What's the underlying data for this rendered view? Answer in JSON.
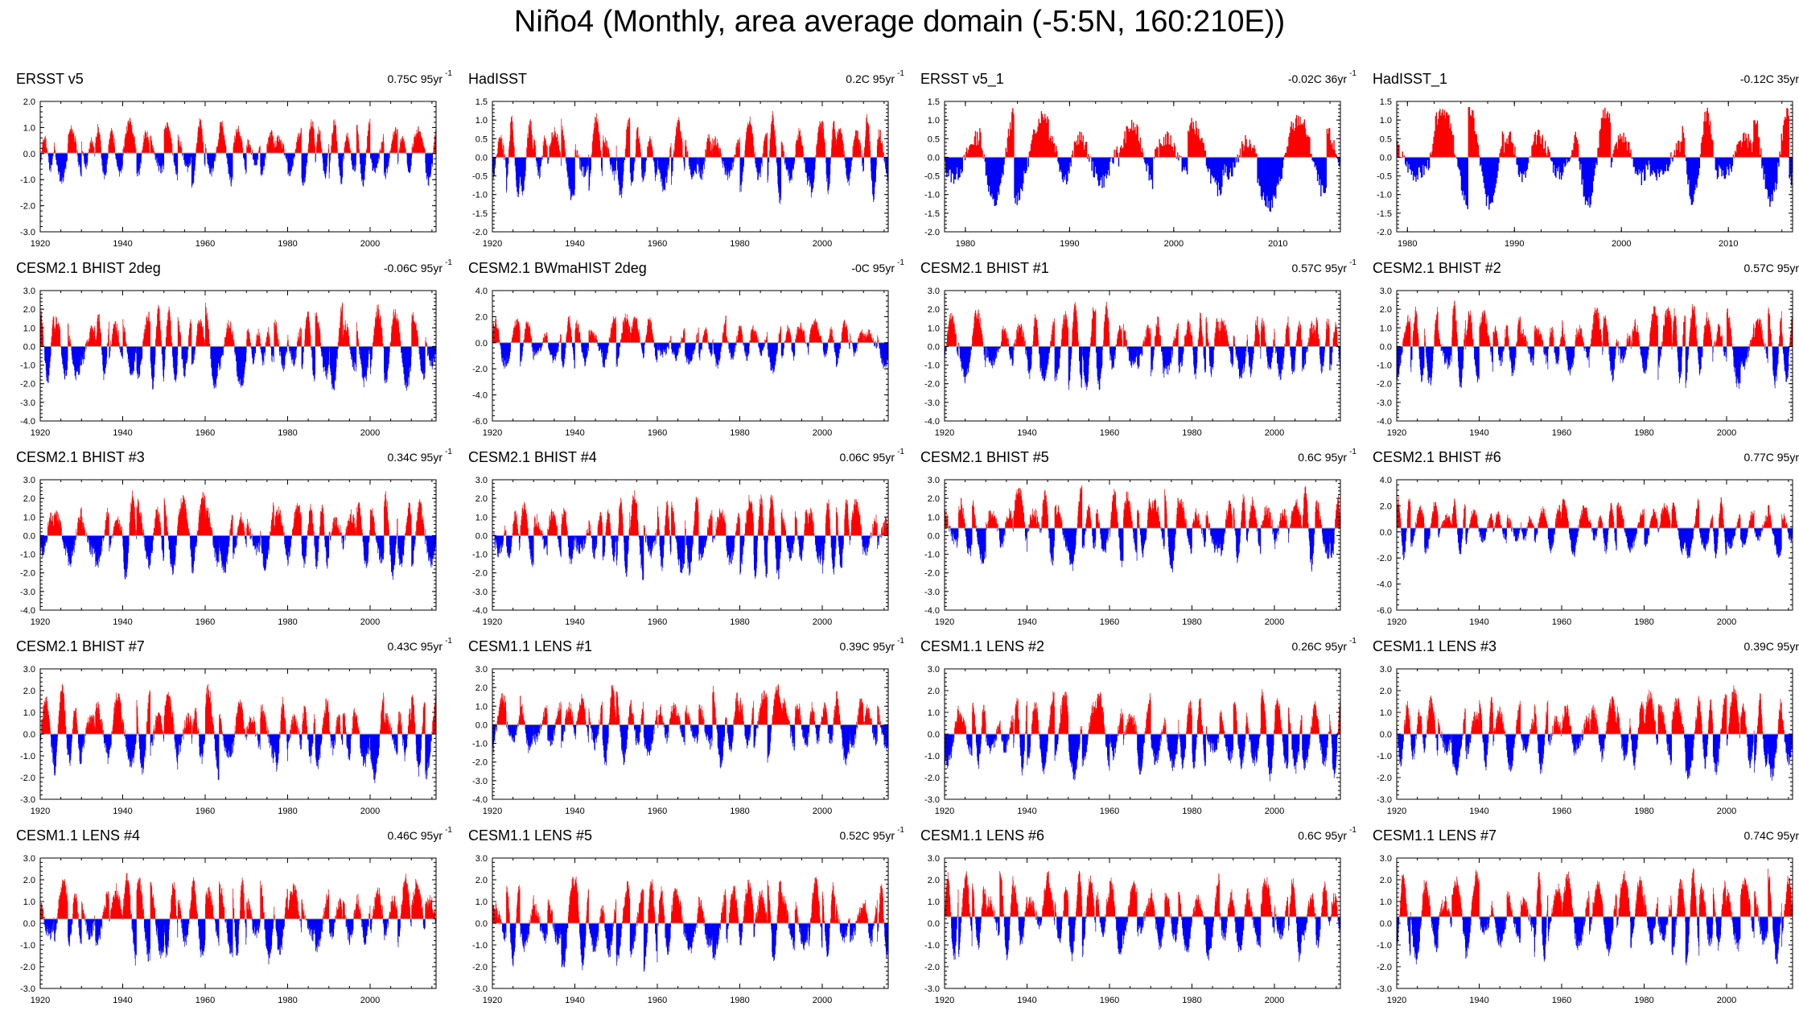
{
  "title": "Niño4 (Monthly, area average domain (-5:5N, 160:210E))",
  "colors": {
    "positive": "#ff0000",
    "negative": "#0000ff",
    "axis": "#000000",
    "zero": "#999999"
  },
  "chart_data": [
    {
      "type": "bar",
      "title": "ERSST v5",
      "trend": "0.75C 95yr",
      "xlim": [
        1920,
        2016
      ],
      "xticks": [
        1920,
        1940,
        1960,
        1980,
        2000
      ],
      "ylim": [
        -3.0,
        2.0
      ],
      "yticks": [
        -3.0,
        -2.0,
        -1.0,
        0.0,
        1.0,
        2.0
      ],
      "reference": 0.02,
      "amp": 1.1,
      "seed": 11
    },
    {
      "type": "bar",
      "title": "HadISST",
      "trend": "0.2C 95yr",
      "xlim": [
        1920,
        2016
      ],
      "xticks": [
        1920,
        1940,
        1960,
        1980,
        2000
      ],
      "ylim": [
        -2.0,
        1.5
      ],
      "yticks": [
        -2.0,
        -1.5,
        -1.0,
        -0.5,
        0.0,
        0.5,
        1.0,
        1.5
      ],
      "reference": 0.0,
      "amp": 1.0,
      "seed": 12
    },
    {
      "type": "bar",
      "title": "ERSST v5_1",
      "trend": "-0.02C 36yr",
      "xlim": [
        1978,
        2016
      ],
      "xticks": [
        1980,
        1990,
        2000,
        2010
      ],
      "ylim": [
        -2.0,
        1.5
      ],
      "yticks": [
        -2.0,
        -1.5,
        -1.0,
        -0.5,
        0.0,
        0.5,
        1.0,
        1.5
      ],
      "reference": 0.0,
      "amp": 1.2,
      "seed": 13
    },
    {
      "type": "bar",
      "title": "HadISST_1",
      "trend": "-0.12C 35yr",
      "xlim": [
        1979,
        2016
      ],
      "xticks": [
        1980,
        1990,
        2000,
        2010
      ],
      "ylim": [
        -2.0,
        1.5
      ],
      "yticks": [
        -2.0,
        -1.5,
        -1.0,
        -0.5,
        0.0,
        0.5,
        1.0,
        1.5
      ],
      "reference": 0.0,
      "amp": 1.2,
      "seed": 14
    },
    {
      "type": "bar",
      "title": "CESM2.1 BHIST 2deg",
      "trend": "-0.06C 95yr",
      "xlim": [
        1920,
        2016
      ],
      "xticks": [
        1920,
        1940,
        1960,
        1980,
        2000
      ],
      "ylim": [
        -4.0,
        3.0
      ],
      "yticks": [
        -4.0,
        -3.0,
        -2.0,
        -1.0,
        0.0,
        1.0,
        2.0,
        3.0
      ],
      "reference": 0.0,
      "amp": 2.0,
      "seed": 21
    },
    {
      "type": "bar",
      "title": "CESM2.1 BWmaHIST 2deg",
      "trend": "-0C 95yr",
      "xlim": [
        1920,
        2016
      ],
      "xticks": [
        1920,
        1940,
        1960,
        1980,
        2000
      ],
      "ylim": [
        -6.0,
        4.0
      ],
      "yticks": [
        -6.0,
        -4.0,
        -2.0,
        0.0,
        2.0,
        4.0
      ],
      "reference": 0.0,
      "amp": 2.0,
      "seed": 22
    },
    {
      "type": "bar",
      "title": "CESM2.1 BHIST #1",
      "trend": "0.57C 95yr",
      "xlim": [
        1920,
        2016
      ],
      "xticks": [
        1920,
        1940,
        1960,
        1980,
        2000
      ],
      "ylim": [
        -4.0,
        3.0
      ],
      "yticks": [
        -4.0,
        -3.0,
        -2.0,
        -1.0,
        0.0,
        1.0,
        2.0,
        3.0
      ],
      "reference": 0.0,
      "amp": 2.0,
      "seed": 23
    },
    {
      "type": "bar",
      "title": "CESM2.1 BHIST #2",
      "trend": "0.57C 95yr",
      "xlim": [
        1920,
        2016
      ],
      "xticks": [
        1920,
        1940,
        1960,
        1980,
        2000
      ],
      "ylim": [
        -4.0,
        3.0
      ],
      "yticks": [
        -4.0,
        -3.0,
        -2.0,
        -1.0,
        0.0,
        1.0,
        2.0,
        3.0
      ],
      "reference": 0.0,
      "amp": 2.0,
      "seed": 24
    },
    {
      "type": "bar",
      "title": "CESM2.1 BHIST #3",
      "trend": "0.34C 95yr",
      "xlim": [
        1920,
        2016
      ],
      "xticks": [
        1920,
        1940,
        1960,
        1980,
        2000
      ],
      "ylim": [
        -4.0,
        3.0
      ],
      "yticks": [
        -4.0,
        -3.0,
        -2.0,
        -1.0,
        0.0,
        1.0,
        2.0,
        3.0
      ],
      "reference": 0.0,
      "amp": 2.0,
      "seed": 31
    },
    {
      "type": "bar",
      "title": "CESM2.1 BHIST #4",
      "trend": "0.06C 95yr",
      "xlim": [
        1920,
        2016
      ],
      "xticks": [
        1920,
        1940,
        1960,
        1980,
        2000
      ],
      "ylim": [
        -4.0,
        3.0
      ],
      "yticks": [
        -4.0,
        -3.0,
        -2.0,
        -1.0,
        0.0,
        1.0,
        2.0,
        3.0
      ],
      "reference": 0.0,
      "amp": 2.0,
      "seed": 32
    },
    {
      "type": "bar",
      "title": "CESM2.1 BHIST #5",
      "trend": "0.6C 95yr",
      "xlim": [
        1920,
        2016
      ],
      "xticks": [
        1920,
        1940,
        1960,
        1980,
        2000
      ],
      "ylim": [
        -4.0,
        3.0
      ],
      "yticks": [
        -4.0,
        -3.0,
        -2.0,
        -1.0,
        0.0,
        1.0,
        2.0,
        3.0
      ],
      "reference": 0.4,
      "amp": 2.0,
      "seed": 33
    },
    {
      "type": "bar",
      "title": "CESM2.1 BHIST #6",
      "trend": "0.77C 95yr",
      "xlim": [
        1920,
        2016
      ],
      "xticks": [
        1920,
        1940,
        1960,
        1980,
        2000
      ],
      "ylim": [
        -6.0,
        4.0
      ],
      "yticks": [
        -6.0,
        -4.0,
        -2.0,
        0.0,
        2.0,
        4.0
      ],
      "reference": 0.3,
      "amp": 2.0,
      "seed": 34
    },
    {
      "type": "bar",
      "title": "CESM2.1 BHIST #7",
      "trend": "0.43C 95yr",
      "xlim": [
        1920,
        2016
      ],
      "xticks": [
        1920,
        1940,
        1960,
        1980,
        2000
      ],
      "ylim": [
        -3.0,
        3.0
      ],
      "yticks": [
        -3.0,
        -2.0,
        -1.0,
        0.0,
        1.0,
        2.0,
        3.0
      ],
      "reference": 0.0,
      "amp": 1.9,
      "seed": 41
    },
    {
      "type": "bar",
      "title": "CESM1.1 LENS #1",
      "trend": "0.39C 95yr",
      "xlim": [
        1920,
        2016
      ],
      "xticks": [
        1920,
        1940,
        1960,
        1980,
        2000
      ],
      "ylim": [
        -4.0,
        3.0
      ],
      "yticks": [
        -4.0,
        -3.0,
        -2.0,
        -1.0,
        0.0,
        1.0,
        2.0,
        3.0
      ],
      "reference": 0.0,
      "amp": 1.9,
      "seed": 42
    },
    {
      "type": "bar",
      "title": "CESM1.1 LENS #2",
      "trend": "0.26C 95yr",
      "xlim": [
        1920,
        2016
      ],
      "xticks": [
        1920,
        1940,
        1960,
        1980,
        2000
      ],
      "ylim": [
        -3.0,
        3.0
      ],
      "yticks": [
        -3.0,
        -2.0,
        -1.0,
        0.0,
        1.0,
        2.0,
        3.0
      ],
      "reference": 0.0,
      "amp": 1.8,
      "seed": 43
    },
    {
      "type": "bar",
      "title": "CESM1.1 LENS #3",
      "trend": "0.39C 95yr",
      "xlim": [
        1920,
        2016
      ],
      "xticks": [
        1920,
        1940,
        1960,
        1980,
        2000
      ],
      "ylim": [
        -3.0,
        3.0
      ],
      "yticks": [
        -3.0,
        -2.0,
        -1.0,
        0.0,
        1.0,
        2.0,
        3.0
      ],
      "reference": 0.0,
      "amp": 1.8,
      "seed": 44
    },
    {
      "type": "bar",
      "title": "CESM1.1 LENS #4",
      "trend": "0.46C 95yr",
      "xlim": [
        1920,
        2016
      ],
      "xticks": [
        1920,
        1940,
        1960,
        1980,
        2000
      ],
      "ylim": [
        -3.0,
        3.0
      ],
      "yticks": [
        -3.0,
        -2.0,
        -1.0,
        0.0,
        1.0,
        2.0,
        3.0
      ],
      "reference": 0.2,
      "amp": 1.8,
      "seed": 51
    },
    {
      "type": "bar",
      "title": "CESM1.1 LENS #5",
      "trend": "0.52C 95yr",
      "xlim": [
        1920,
        2016
      ],
      "xticks": [
        1920,
        1940,
        1960,
        1980,
        2000
      ],
      "ylim": [
        -3.0,
        3.0
      ],
      "yticks": [
        -3.0,
        -2.0,
        -1.0,
        0.0,
        1.0,
        2.0,
        3.0
      ],
      "reference": 0.0,
      "amp": 1.8,
      "seed": 52
    },
    {
      "type": "bar",
      "title": "CESM1.1 LENS #6",
      "trend": "0.6C 95yr",
      "xlim": [
        1920,
        2016
      ],
      "xticks": [
        1920,
        1940,
        1960,
        1980,
        2000
      ],
      "ylim": [
        -3.0,
        3.0
      ],
      "yticks": [
        -3.0,
        -2.0,
        -1.0,
        0.0,
        1.0,
        2.0,
        3.0
      ],
      "reference": 0.3,
      "amp": 1.8,
      "seed": 53
    },
    {
      "type": "bar",
      "title": "CESM1.1 LENS #7",
      "trend": "0.74C 95yr",
      "xlim": [
        1920,
        2016
      ],
      "xticks": [
        1920,
        1940,
        1960,
        1980,
        2000
      ],
      "ylim": [
        -3.0,
        3.0
      ],
      "yticks": [
        -3.0,
        -2.0,
        -1.0,
        0.0,
        1.0,
        2.0,
        3.0
      ],
      "reference": 0.3,
      "amp": 1.8,
      "seed": 54
    }
  ]
}
